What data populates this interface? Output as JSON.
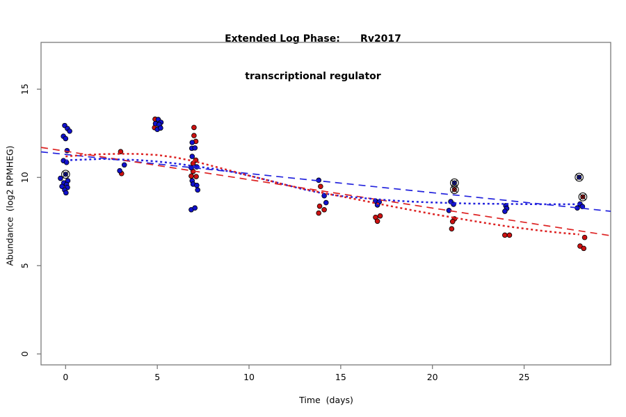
{
  "figure": {
    "title_line1": "Extended Log Phase:      Rv2017",
    "title_line2": "transcriptional regulator"
  },
  "chart_data": {
    "type": "scatter",
    "title": "Extended Log Phase: Rv2017 transcriptional regulator",
    "xlabel": "Time  (days)",
    "ylabel": "Abundance  (log2 RPMHEG)",
    "xlim": [
      -1.34,
      29.72
    ],
    "ylim": [
      -0.62,
      17.65
    ],
    "xticks": [
      0,
      5,
      10,
      15,
      20,
      25
    ],
    "yticks": [
      0,
      5,
      10,
      15
    ],
    "grid": false,
    "legend": "none",
    "colors": {
      "red_point": "#cc1111",
      "blue_point": "#1111cc",
      "red_line": "#dd2222",
      "blue_line": "#2222dd",
      "axis": "#7a7a7a",
      "flag_marker": "#111111"
    },
    "series": [
      {
        "name": "red-points",
        "marker": "circle",
        "color": "#cc1111",
        "points": [
          [
            3.0,
            11.46
          ],
          [
            3.05,
            10.22
          ],
          [
            4.88,
            13.3
          ],
          [
            4.85,
            12.82
          ],
          [
            5.15,
            12.85
          ],
          [
            7.0,
            12.83
          ],
          [
            7.0,
            12.37
          ],
          [
            7.1,
            12.04
          ],
          [
            7.1,
            10.98
          ],
          [
            6.95,
            10.79
          ],
          [
            6.95,
            10.34
          ],
          [
            6.85,
            10.08
          ],
          [
            7.12,
            10.05
          ],
          [
            13.9,
            9.49
          ],
          [
            13.85,
            8.37
          ],
          [
            14.1,
            8.17
          ],
          [
            13.8,
            7.98
          ],
          [
            16.9,
            7.74
          ],
          [
            17.15,
            7.82
          ],
          [
            17.0,
            7.52
          ],
          [
            21.2,
            7.65
          ],
          [
            21.1,
            7.5
          ],
          [
            21.05,
            7.09
          ],
          [
            23.95,
            6.73
          ],
          [
            24.2,
            6.73
          ],
          [
            28.3,
            6.6
          ],
          [
            28.05,
            6.11
          ],
          [
            28.25,
            5.98
          ]
        ]
      },
      {
        "name": "blue-points",
        "marker": "circle",
        "color": "#1111cc",
        "points": [
          [
            -0.05,
            12.94
          ],
          [
            0.1,
            12.77
          ],
          [
            0.22,
            12.62
          ],
          [
            -0.12,
            12.33
          ],
          [
            0.0,
            12.2
          ],
          [
            0.08,
            11.52
          ],
          [
            -0.12,
            10.95
          ],
          [
            0.05,
            10.85
          ],
          [
            -0.28,
            9.95
          ],
          [
            0.12,
            9.81
          ],
          [
            -0.1,
            9.69
          ],
          [
            0.05,
            9.6
          ],
          [
            -0.2,
            9.49
          ],
          [
            0.1,
            9.43
          ],
          [
            -0.05,
            9.29
          ],
          [
            0.02,
            9.13
          ],
          [
            3.2,
            10.71
          ],
          [
            2.95,
            10.38
          ],
          [
            5.05,
            13.28
          ],
          [
            5.2,
            13.12
          ],
          [
            4.9,
            13.05
          ],
          [
            5.1,
            13.0
          ],
          [
            5.0,
            12.72
          ],
          [
            5.18,
            12.8
          ],
          [
            6.9,
            11.98
          ],
          [
            6.88,
            11.65
          ],
          [
            7.05,
            11.67
          ],
          [
            6.9,
            11.19
          ],
          [
            6.85,
            10.55
          ],
          [
            7.15,
            10.6
          ],
          [
            6.9,
            9.81
          ],
          [
            6.95,
            9.62
          ],
          [
            7.15,
            9.55
          ],
          [
            7.2,
            9.29
          ],
          [
            6.85,
            8.17
          ],
          [
            7.05,
            8.27
          ],
          [
            13.8,
            9.84
          ],
          [
            14.1,
            8.96
          ],
          [
            14.2,
            8.57
          ],
          [
            16.9,
            8.66
          ],
          [
            17.1,
            8.61
          ],
          [
            17.0,
            8.44
          ],
          [
            21.0,
            8.63
          ],
          [
            21.15,
            8.48
          ],
          [
            20.9,
            8.13
          ],
          [
            24.0,
            8.4
          ],
          [
            24.05,
            8.24
          ],
          [
            23.95,
            8.08
          ],
          [
            28.05,
            8.5
          ],
          [
            27.9,
            8.27
          ],
          [
            28.18,
            8.35
          ]
        ]
      },
      {
        "name": "flagged-points",
        "marker": "circle-x",
        "points": [
          {
            "x": 0.0,
            "y": 10.18,
            "color": "#1111cc"
          },
          {
            "x": 21.2,
            "y": 9.69,
            "color": "#1111cc"
          },
          {
            "x": 21.2,
            "y": 9.31,
            "color": "#cc1111"
          },
          {
            "x": 28.0,
            "y": 10.01,
            "color": "#1111cc"
          },
          {
            "x": 28.2,
            "y": 8.9,
            "color": "#cc1111"
          }
        ]
      }
    ],
    "lines": [
      {
        "name": "blue-dashed-linear-fit",
        "style": "dashed",
        "color": "#2222dd",
        "points": [
          [
            -1.34,
            11.45
          ],
          [
            29.72,
            8.08
          ]
        ]
      },
      {
        "name": "red-dashed-linear-fit",
        "style": "dashed",
        "color": "#dd2222",
        "points": [
          [
            -1.34,
            11.7
          ],
          [
            29.72,
            6.7
          ]
        ]
      },
      {
        "name": "blue-dotted-smooth-fit",
        "style": "dotted",
        "color": "#2222dd",
        "points": [
          [
            0,
            10.97
          ],
          [
            2,
            11.05
          ],
          [
            4,
            10.98
          ],
          [
            5,
            10.9
          ],
          [
            6,
            10.79
          ],
          [
            7,
            10.64
          ],
          [
            8,
            10.5
          ],
          [
            9,
            10.33
          ],
          [
            10,
            10.1
          ],
          [
            11,
            9.85
          ],
          [
            12,
            9.58
          ],
          [
            13,
            9.32
          ],
          [
            14,
            9.1
          ],
          [
            15,
            8.95
          ],
          [
            16,
            8.85
          ],
          [
            17,
            8.76
          ],
          [
            18,
            8.68
          ],
          [
            19,
            8.62
          ],
          [
            20,
            8.58
          ],
          [
            21,
            8.55
          ],
          [
            22,
            8.52
          ],
          [
            24,
            8.5
          ],
          [
            26,
            8.48
          ],
          [
            28,
            8.48
          ]
        ]
      },
      {
        "name": "red-dotted-smooth-fit",
        "style": "dotted",
        "color": "#dd2222",
        "points": [
          [
            0,
            11.19
          ],
          [
            1,
            11.27
          ],
          [
            2,
            11.32
          ],
          [
            3,
            11.34
          ],
          [
            4,
            11.33
          ],
          [
            5,
            11.27
          ],
          [
            6,
            11.13
          ],
          [
            7,
            10.92
          ],
          [
            8,
            10.65
          ],
          [
            9,
            10.38
          ],
          [
            10,
            10.1
          ],
          [
            11,
            9.84
          ],
          [
            12,
            9.58
          ],
          [
            13,
            9.35
          ],
          [
            14,
            9.13
          ],
          [
            15,
            8.93
          ],
          [
            16,
            8.73
          ],
          [
            17,
            8.52
          ],
          [
            18,
            8.32
          ],
          [
            19,
            8.12
          ],
          [
            20,
            7.93
          ],
          [
            21,
            7.75
          ],
          [
            22,
            7.57
          ],
          [
            23,
            7.4
          ],
          [
            24,
            7.24
          ],
          [
            25,
            7.1
          ],
          [
            26,
            6.97
          ],
          [
            27,
            6.86
          ],
          [
            28,
            6.77
          ]
        ]
      }
    ]
  }
}
